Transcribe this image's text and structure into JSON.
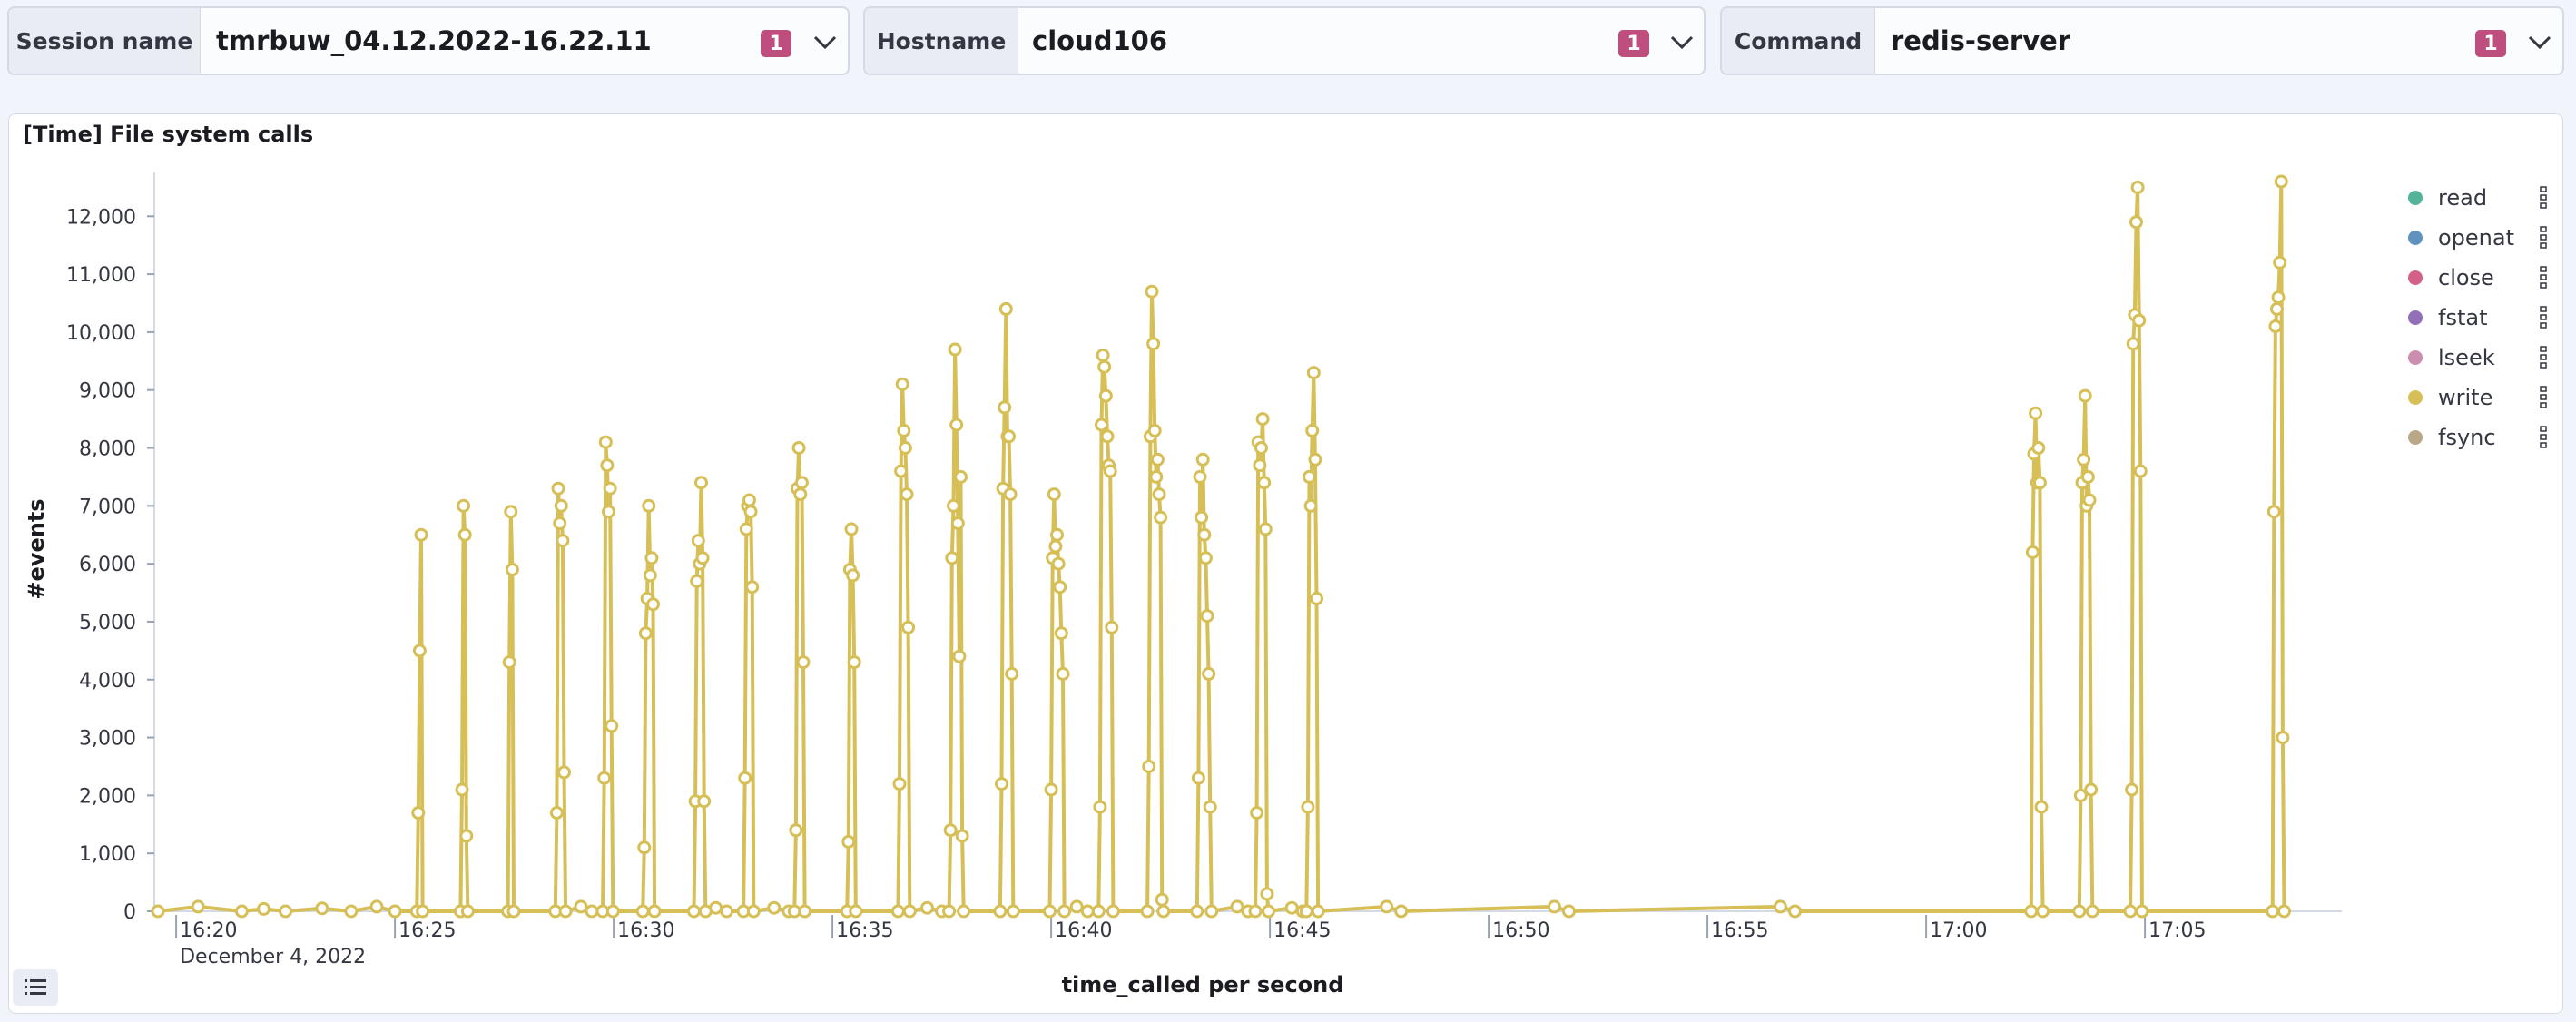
{
  "controls": [
    {
      "label": "Session name",
      "value": "tmrbuw_04.12.2022-16.22.11",
      "badge": "1"
    },
    {
      "label": "Hostname",
      "value": "cloud106",
      "badge": "1"
    },
    {
      "label": "Command",
      "value": "redis-server",
      "badge": "1"
    }
  ],
  "panel": {
    "title": "[Time] File system calls"
  },
  "colors": {
    "badge": "#bd4e7e",
    "primary_series": "#d6bf57"
  },
  "icons": {
    "chevron": "chevron-down-icon",
    "legend_toggle": "list-icon",
    "legend_action": "vertical-dots-icon"
  },
  "chart_data": {
    "type": "line",
    "xlabel": "time_called per second",
    "ylabel": "#events",
    "ylim": [
      0,
      12600
    ],
    "xlim": [
      "16:19:30",
      "17:09:30"
    ],
    "x_ticks": [
      "16:20",
      "16:25",
      "16:30",
      "16:35",
      "16:40",
      "16:45",
      "16:50",
      "16:55",
      "17:00",
      "17:05"
    ],
    "x_subtick": "December 4, 2022",
    "y_ticks": [
      {
        "v": 0,
        "label": "0"
      },
      {
        "v": 1000,
        "label": "1,000"
      },
      {
        "v": 2000,
        "label": "2,000"
      },
      {
        "v": 3000,
        "label": "3,000"
      },
      {
        "v": 4000,
        "label": "4,000"
      },
      {
        "v": 5000,
        "label": "5,000"
      },
      {
        "v": 6000,
        "label": "6,000"
      },
      {
        "v": 7000,
        "label": "7,000"
      },
      {
        "v": 8000,
        "label": "8,000"
      },
      {
        "v": 9000,
        "label": "9,000"
      },
      {
        "v": 10000,
        "label": "10,000"
      },
      {
        "v": 11000,
        "label": "11,000"
      },
      {
        "v": 12000,
        "label": "12,000"
      }
    ],
    "legend_position": "right",
    "grid": false,
    "series": [
      {
        "name": "read",
        "color": "#54b399",
        "points": []
      },
      {
        "name": "openat",
        "color": "#6092c0",
        "points": []
      },
      {
        "name": "close",
        "color": "#d36086",
        "points": []
      },
      {
        "name": "fstat",
        "color": "#9170b8",
        "points": []
      },
      {
        "name": "lseek",
        "color": "#ca8eae",
        "points": []
      },
      {
        "name": "write",
        "color": "#d6bf57",
        "points": [
          [
            "16:19:35",
            0
          ],
          [
            "16:20:30",
            80
          ],
          [
            "16:21:30",
            0
          ],
          [
            "16:22:00",
            40
          ],
          [
            "16:22:30",
            0
          ],
          [
            "16:23:20",
            50
          ],
          [
            "16:24:00",
            0
          ],
          [
            "16:24:35",
            80
          ],
          [
            "16:25:00",
            0
          ],
          [
            "16:25:30",
            0
          ],
          [
            "16:25:32",
            1700
          ],
          [
            "16:25:34",
            4500
          ],
          [
            "16:25:36",
            6500
          ],
          [
            "16:25:38",
            0
          ],
          [
            "16:26:30",
            0
          ],
          [
            "16:26:32",
            2100
          ],
          [
            "16:26:34",
            7000
          ],
          [
            "16:26:36",
            6500
          ],
          [
            "16:26:38",
            1300
          ],
          [
            "16:26:40",
            0
          ],
          [
            "16:27:35",
            0
          ],
          [
            "16:27:37",
            4300
          ],
          [
            "16:27:39",
            6900
          ],
          [
            "16:27:41",
            5900
          ],
          [
            "16:27:43",
            0
          ],
          [
            "16:28:40",
            0
          ],
          [
            "16:28:42",
            1700
          ],
          [
            "16:28:44",
            7300
          ],
          [
            "16:28:46",
            6700
          ],
          [
            "16:28:48",
            7000
          ],
          [
            "16:28:50",
            6400
          ],
          [
            "16:28:52",
            2400
          ],
          [
            "16:28:54",
            0
          ],
          [
            "16:29:15",
            80
          ],
          [
            "16:29:30",
            0
          ],
          [
            "16:29:45",
            0
          ],
          [
            "16:29:47",
            2300
          ],
          [
            "16:29:49",
            8100
          ],
          [
            "16:29:51",
            7700
          ],
          [
            "16:29:53",
            6900
          ],
          [
            "16:29:55",
            7300
          ],
          [
            "16:29:57",
            3200
          ],
          [
            "16:29:59",
            0
          ],
          [
            "16:30:40",
            0
          ],
          [
            "16:30:42",
            1100
          ],
          [
            "16:30:44",
            4800
          ],
          [
            "16:30:46",
            5400
          ],
          [
            "16:30:48",
            7000
          ],
          [
            "16:30:50",
            5800
          ],
          [
            "16:30:52",
            6100
          ],
          [
            "16:30:54",
            5300
          ],
          [
            "16:30:56",
            0
          ],
          [
            "16:31:50",
            0
          ],
          [
            "16:31:52",
            1900
          ],
          [
            "16:31:54",
            5700
          ],
          [
            "16:31:56",
            6400
          ],
          [
            "16:31:58",
            6000
          ],
          [
            "16:32:00",
            7400
          ],
          [
            "16:32:02",
            6100
          ],
          [
            "16:32:04",
            1900
          ],
          [
            "16:32:06",
            0
          ],
          [
            "16:32:20",
            60
          ],
          [
            "16:32:35",
            0
          ],
          [
            "16:32:58",
            0
          ],
          [
            "16:33:00",
            2300
          ],
          [
            "16:33:02",
            6600
          ],
          [
            "16:33:04",
            7000
          ],
          [
            "16:33:06",
            7100
          ],
          [
            "16:33:08",
            6900
          ],
          [
            "16:33:10",
            5600
          ],
          [
            "16:33:12",
            0
          ],
          [
            "16:33:40",
            60
          ],
          [
            "16:34:00",
            0
          ],
          [
            "16:34:08",
            0
          ],
          [
            "16:34:10",
            1400
          ],
          [
            "16:34:12",
            7300
          ],
          [
            "16:34:14",
            8000
          ],
          [
            "16:34:16",
            7200
          ],
          [
            "16:34:18",
            7400
          ],
          [
            "16:34:20",
            4300
          ],
          [
            "16:34:22",
            0
          ],
          [
            "16:35:20",
            0
          ],
          [
            "16:35:22",
            1200
          ],
          [
            "16:35:24",
            5900
          ],
          [
            "16:35:26",
            6600
          ],
          [
            "16:35:28",
            5800
          ],
          [
            "16:35:30",
            4300
          ],
          [
            "16:35:32",
            0
          ],
          [
            "16:36:30",
            0
          ],
          [
            "16:36:32",
            2200
          ],
          [
            "16:36:34",
            7600
          ],
          [
            "16:36:36",
            9100
          ],
          [
            "16:36:38",
            8300
          ],
          [
            "16:36:40",
            8000
          ],
          [
            "16:36:42",
            7200
          ],
          [
            "16:36:44",
            4900
          ],
          [
            "16:36:46",
            0
          ],
          [
            "16:37:10",
            60
          ],
          [
            "16:37:30",
            0
          ],
          [
            "16:37:40",
            0
          ],
          [
            "16:37:42",
            1400
          ],
          [
            "16:37:44",
            6100
          ],
          [
            "16:37:46",
            7000
          ],
          [
            "16:37:48",
            9700
          ],
          [
            "16:37:50",
            8400
          ],
          [
            "16:37:52",
            6700
          ],
          [
            "16:37:54",
            4400
          ],
          [
            "16:37:56",
            7500
          ],
          [
            "16:37:58",
            1300
          ],
          [
            "16:38:00",
            0
          ],
          [
            "16:38:50",
            0
          ],
          [
            "16:38:52",
            2200
          ],
          [
            "16:38:54",
            7300
          ],
          [
            "16:38:56",
            8700
          ],
          [
            "16:38:58",
            10400
          ],
          [
            "16:39:00",
            8200
          ],
          [
            "16:39:02",
            8200
          ],
          [
            "16:39:04",
            7200
          ],
          [
            "16:39:06",
            4100
          ],
          [
            "16:39:08",
            0
          ],
          [
            "16:39:58",
            0
          ],
          [
            "16:40:00",
            2100
          ],
          [
            "16:40:02",
            6100
          ],
          [
            "16:40:04",
            7200
          ],
          [
            "16:40:06",
            6300
          ],
          [
            "16:40:08",
            6500
          ],
          [
            "16:40:10",
            6000
          ],
          [
            "16:40:12",
            5600
          ],
          [
            "16:40:14",
            4800
          ],
          [
            "16:40:16",
            4100
          ],
          [
            "16:40:18",
            0
          ],
          [
            "16:40:35",
            80
          ],
          [
            "16:40:50",
            0
          ],
          [
            "16:41:05",
            0
          ],
          [
            "16:41:07",
            1800
          ],
          [
            "16:41:09",
            8400
          ],
          [
            "16:41:11",
            9600
          ],
          [
            "16:41:13",
            9400
          ],
          [
            "16:41:15",
            8900
          ],
          [
            "16:41:17",
            8200
          ],
          [
            "16:41:19",
            7700
          ],
          [
            "16:41:21",
            7600
          ],
          [
            "16:41:23",
            4900
          ],
          [
            "16:41:25",
            0
          ],
          [
            "16:42:12",
            0
          ],
          [
            "16:42:14",
            2500
          ],
          [
            "16:42:16",
            8200
          ],
          [
            "16:42:18",
            10700
          ],
          [
            "16:42:20",
            9800
          ],
          [
            "16:42:22",
            8300
          ],
          [
            "16:42:24",
            7500
          ],
          [
            "16:42:26",
            7800
          ],
          [
            "16:42:28",
            7200
          ],
          [
            "16:42:30",
            6800
          ],
          [
            "16:42:32",
            200
          ],
          [
            "16:42:34",
            0
          ],
          [
            "16:43:20",
            0
          ],
          [
            "16:43:22",
            2300
          ],
          [
            "16:43:24",
            7500
          ],
          [
            "16:43:26",
            6800
          ],
          [
            "16:43:28",
            7800
          ],
          [
            "16:43:30",
            6500
          ],
          [
            "16:43:32",
            6100
          ],
          [
            "16:43:34",
            5100
          ],
          [
            "16:43:36",
            4100
          ],
          [
            "16:43:38",
            1800
          ],
          [
            "16:43:40",
            0
          ],
          [
            "16:44:15",
            80
          ],
          [
            "16:44:30",
            0
          ],
          [
            "16:44:40",
            0
          ],
          [
            "16:44:42",
            1700
          ],
          [
            "16:44:44",
            8100
          ],
          [
            "16:44:46",
            7700
          ],
          [
            "16:44:48",
            8000
          ],
          [
            "16:44:50",
            8500
          ],
          [
            "16:44:52",
            7400
          ],
          [
            "16:44:54",
            6600
          ],
          [
            "16:44:56",
            300
          ],
          [
            "16:44:58",
            0
          ],
          [
            "16:45:30",
            60
          ],
          [
            "16:45:45",
            0
          ],
          [
            "16:45:50",
            0
          ],
          [
            "16:45:52",
            1800
          ],
          [
            "16:45:54",
            7500
          ],
          [
            "16:45:56",
            7000
          ],
          [
            "16:45:58",
            8300
          ],
          [
            "16:46:00",
            9300
          ],
          [
            "16:46:02",
            7800
          ],
          [
            "16:46:04",
            5400
          ],
          [
            "16:46:06",
            0
          ],
          [
            "16:47:40",
            80
          ],
          [
            "16:48:00",
            0
          ],
          [
            "16:51:30",
            80
          ],
          [
            "16:51:50",
            0
          ],
          [
            "16:56:40",
            80
          ],
          [
            "16:57:00",
            0
          ],
          [
            "17:02:24",
            0
          ],
          [
            "17:02:26",
            6200
          ],
          [
            "17:02:28",
            7900
          ],
          [
            "17:02:30",
            8600
          ],
          [
            "17:02:32",
            7400
          ],
          [
            "17:02:34",
            8000
          ],
          [
            "17:02:36",
            7400
          ],
          [
            "17:02:38",
            1800
          ],
          [
            "17:02:40",
            0
          ],
          [
            "17:03:30",
            0
          ],
          [
            "17:03:32",
            2000
          ],
          [
            "17:03:34",
            7400
          ],
          [
            "17:03:36",
            7800
          ],
          [
            "17:03:38",
            8900
          ],
          [
            "17:03:40",
            7000
          ],
          [
            "17:03:42",
            7500
          ],
          [
            "17:03:44",
            7100
          ],
          [
            "17:03:46",
            2100
          ],
          [
            "17:03:48",
            0
          ],
          [
            "17:04:40",
            0
          ],
          [
            "17:04:42",
            2100
          ],
          [
            "17:04:44",
            9800
          ],
          [
            "17:04:46",
            10300
          ],
          [
            "17:04:48",
            11900
          ],
          [
            "17:04:50",
            12500
          ],
          [
            "17:04:52",
            10200
          ],
          [
            "17:04:54",
            7600
          ],
          [
            "17:04:56",
            0
          ],
          [
            "17:07:55",
            0
          ],
          [
            "17:07:57",
            6900
          ],
          [
            "17:07:59",
            10100
          ],
          [
            "17:08:01",
            10400
          ],
          [
            "17:08:03",
            10600
          ],
          [
            "17:08:05",
            11200
          ],
          [
            "17:08:07",
            12600
          ],
          [
            "17:08:09",
            3000
          ],
          [
            "17:08:11",
            0
          ]
        ]
      },
      {
        "name": "fsync",
        "color": "#b9a888",
        "points": []
      }
    ]
  }
}
